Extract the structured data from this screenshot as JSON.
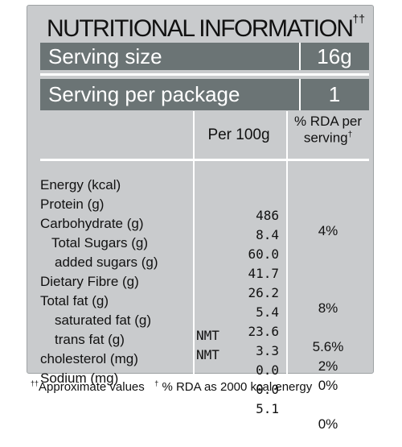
{
  "title": {
    "text": "NUTRITIONAL INFORMATION",
    "mark": "††"
  },
  "serving": [
    {
      "label": "Serving size",
      "value": "16g"
    },
    {
      "label": "Serving per package",
      "value": "1"
    }
  ],
  "headers": {
    "per100g": "Per 100g",
    "rda_line1": "% RDA per",
    "rda_line2": "serving",
    "rda_mark": "†"
  },
  "nutrients": [
    {
      "name": "Energy (kcal)",
      "prefix": "",
      "value": "486",
      "rda": "4%"
    },
    {
      "name": "Protein (g)",
      "prefix": "",
      "value": "8.4",
      "rda": ""
    },
    {
      "name": "Carbohydrate (g)",
      "prefix": "",
      "value": "60.0",
      "rda": ""
    },
    {
      "name": "Total Sugars (g)",
      "prefix": "",
      "value": "41.7",
      "rda": ""
    },
    {
      "name": "added sugars (g)",
      "prefix": "",
      "value": "26.2",
      "rda": "8%"
    },
    {
      "name": "Dietary Fibre (g)",
      "prefix": "",
      "value": "5.4",
      "rda": ""
    },
    {
      "name": "Total fat (g)",
      "prefix": "",
      "value": "23.6",
      "rda": "5.6%"
    },
    {
      "name": "saturated fat (g)",
      "prefix": "NMT",
      "value": "3.3",
      "rda": "2%"
    },
    {
      "name": "trans fat (g)",
      "prefix": "NMT",
      "value": "0.0",
      "rda": "0%"
    },
    {
      "name": "cholesterol (mg)",
      "prefix": "",
      "value": "0.0",
      "rda": ""
    },
    {
      "name": "Sodium (mg)",
      "prefix": "",
      "value": "5.1",
      "rda": "0%"
    }
  ],
  "footer": {
    "mark1": "††",
    "text1": "Approximate values",
    "mark2": "†",
    "text2": "% RDA as 2000 kcal energy"
  }
}
